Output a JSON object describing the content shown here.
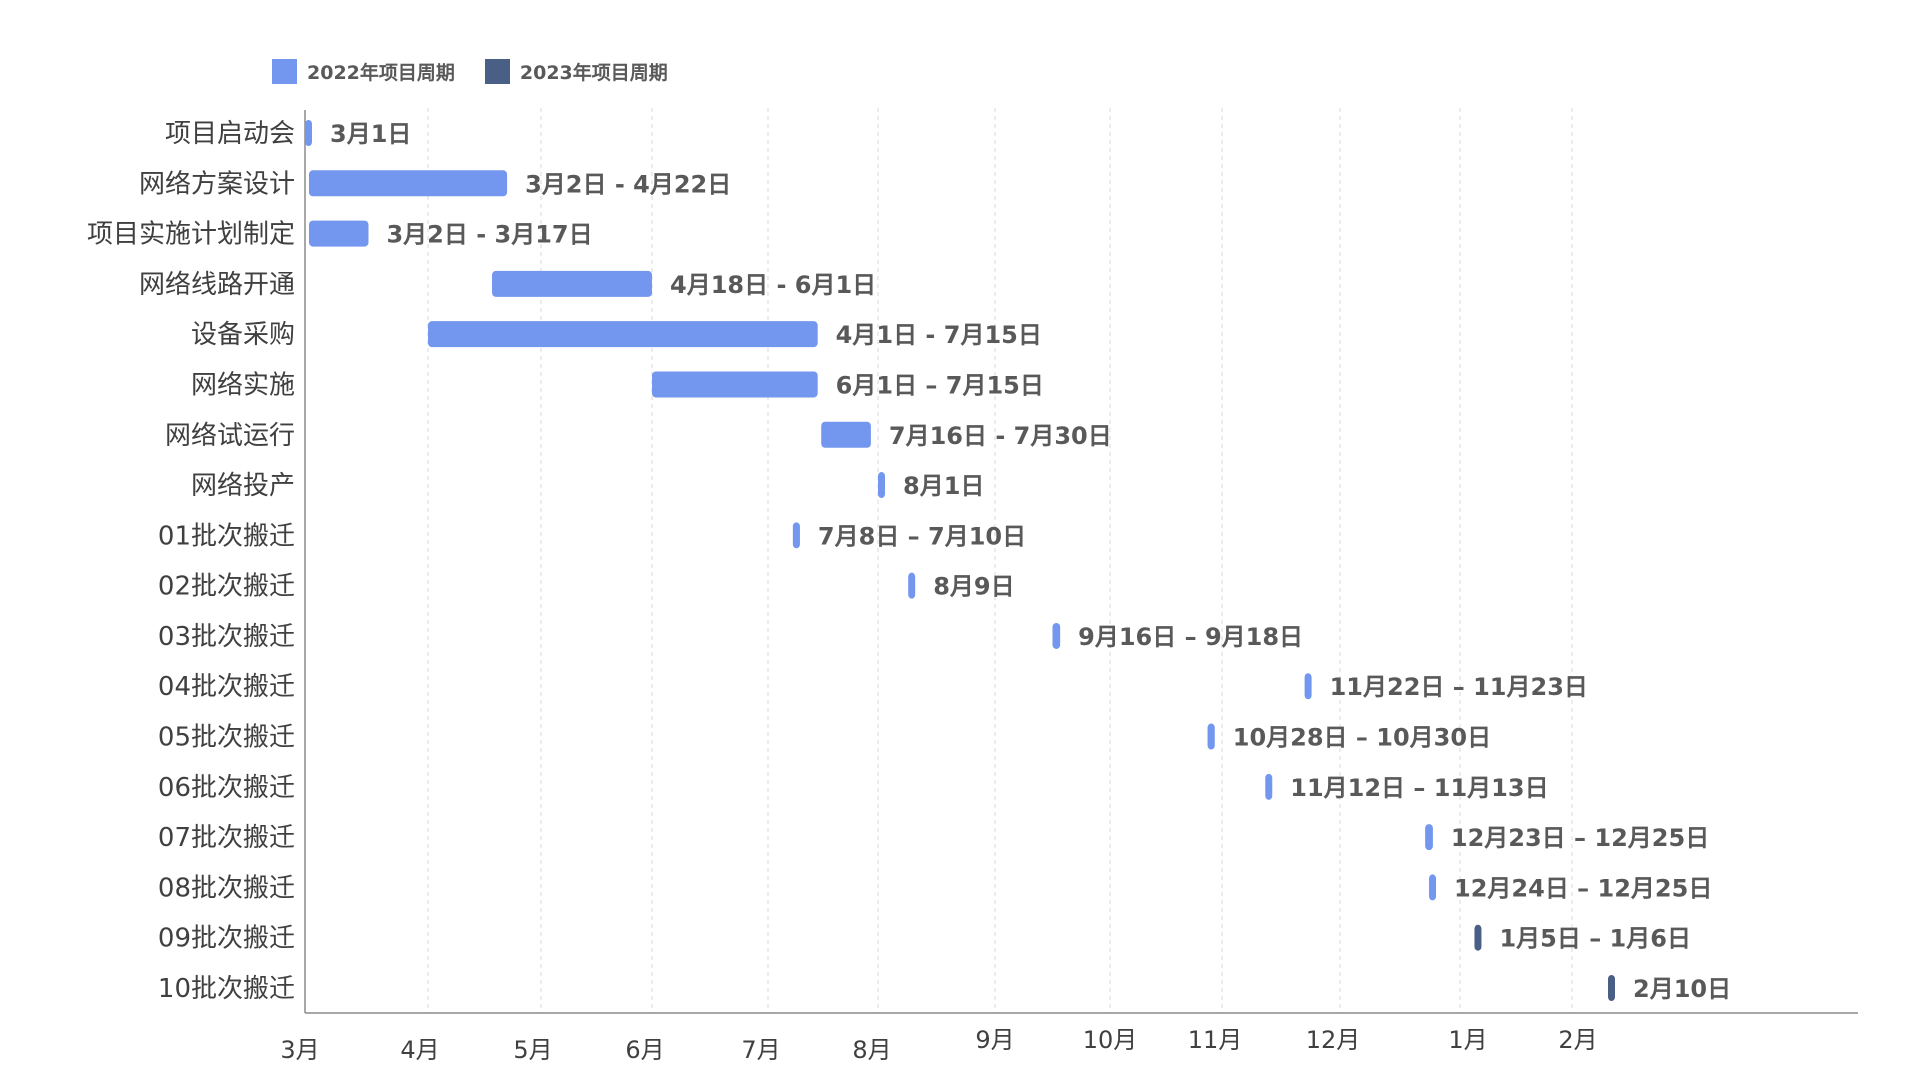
{
  "legend": {
    "items": [
      {
        "label": "2022年项目周期",
        "color": "#7396ee"
      },
      {
        "label": "2023年项目周期",
        "color": "#4a5f86"
      }
    ]
  },
  "chart_data": {
    "type": "gantt",
    "x_ticks": [
      "3月",
      "4月",
      "5月",
      "6月",
      "7月",
      "8月",
      "9月",
      "10月",
      "11月",
      "12月",
      "1月",
      "2月"
    ],
    "grid": "vertical dashed",
    "legend_position": "top-left",
    "tasks": [
      {
        "name": "项目启动会",
        "label": "3月1日",
        "start": "2022-03-01",
        "end": "2022-03-01",
        "series": "2022年项目周期"
      },
      {
        "name": "网络方案设计",
        "label": "3月2日 - 4月22日",
        "start": "2022-03-02",
        "end": "2022-04-22",
        "series": "2022年项目周期"
      },
      {
        "name": "项目实施计划制定",
        "label": "3月2日 - 3月17日",
        "start": "2022-03-02",
        "end": "2022-03-17",
        "series": "2022年项目周期"
      },
      {
        "name": "网络线路开通",
        "label": "4月18日 - 6月1日",
        "start": "2022-04-18",
        "end": "2022-06-01",
        "series": "2022年项目周期"
      },
      {
        "name": "设备采购",
        "label": "4月1日 - 7月15日",
        "start": "2022-04-01",
        "end": "2022-07-15",
        "series": "2022年项目周期"
      },
      {
        "name": "网络实施",
        "label": "6月1日 – 7月15日",
        "start": "2022-06-01",
        "end": "2022-07-15",
        "series": "2022年项目周期"
      },
      {
        "name": "网络试运行",
        "label": "7月16日 - 7月30日",
        "start": "2022-07-16",
        "end": "2022-07-30",
        "series": "2022年项目周期"
      },
      {
        "name": "网络投产",
        "label": "8月1日",
        "start": "2022-08-01",
        "end": "2022-08-01",
        "series": "2022年项目周期"
      },
      {
        "name": "01批次搬迁",
        "label": "7月8日 – 7月10日",
        "start": "2022-07-08",
        "end": "2022-07-10",
        "series": "2022年项目周期"
      },
      {
        "name": "02批次搬迁",
        "label": "8月9日",
        "start": "2022-08-09",
        "end": "2022-08-09",
        "series": "2022年项目周期"
      },
      {
        "name": "03批次搬迁",
        "label": "9月16日 – 9月18日",
        "start": "2022-09-16",
        "end": "2022-09-18",
        "series": "2022年项目周期"
      },
      {
        "name": "04批次搬迁",
        "label": "11月22日 – 11月23日",
        "start": "2022-11-22",
        "end": "2022-11-23",
        "series": "2022年项目周期"
      },
      {
        "name": "05批次搬迁",
        "label": "10月28日 – 10月30日",
        "start": "2022-10-28",
        "end": "2022-10-30",
        "series": "2022年项目周期"
      },
      {
        "name": "06批次搬迁",
        "label": "11月12日 – 11月13日",
        "start": "2022-11-12",
        "end": "2022-11-13",
        "series": "2022年项目周期"
      },
      {
        "name": "07批次搬迁",
        "label": "12月23日 – 12月25日",
        "start": "2022-12-23",
        "end": "2022-12-25",
        "series": "2022年项目周期"
      },
      {
        "name": "08批次搬迁",
        "label": "12月24日 – 12月25日",
        "start": "2022-12-24",
        "end": "2022-12-25",
        "series": "2022年项目周期"
      },
      {
        "name": "09批次搬迁",
        "label": "1月5日 – 1月6日",
        "start": "2023-01-05",
        "end": "2023-01-06",
        "series": "2023年项目周期"
      },
      {
        "name": "10批次搬迁",
        "label": "2月10日",
        "start": "2023-02-10",
        "end": "2023-02-10",
        "series": "2023年项目周期"
      }
    ]
  }
}
